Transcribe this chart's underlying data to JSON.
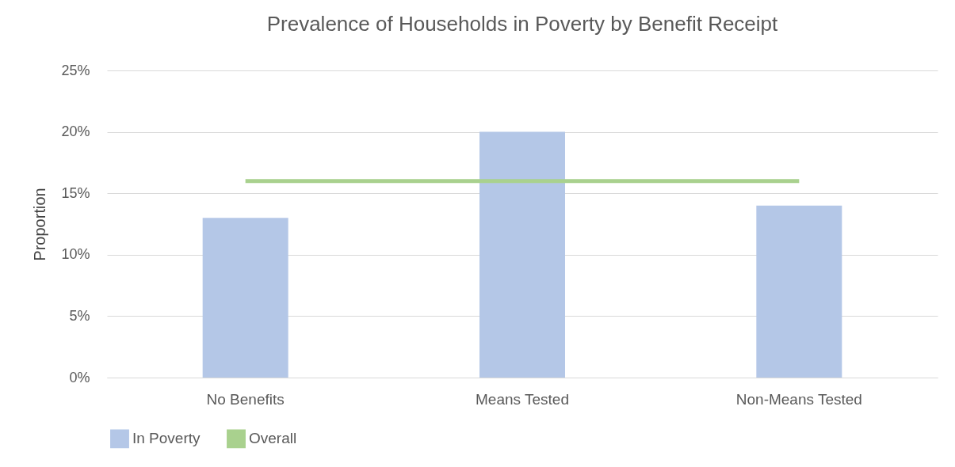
{
  "chart_data": {
    "type": "bar",
    "title": "Prevalence of Households in Poverty by Benefit Receipt",
    "ylabel": "Proportion",
    "categories": [
      "No Benefits",
      "Means Tested",
      "Non-Means Tested"
    ],
    "series": [
      {
        "name": "In Poverty",
        "color": "#b4c7e7",
        "values": [
          13,
          20,
          14
        ]
      },
      {
        "name": "Overall",
        "type": "line",
        "color": "#a9d18e",
        "values": [
          16,
          16,
          16
        ]
      }
    ],
    "ylim": [
      0,
      25
    ],
    "yticks": [
      {
        "value": 0,
        "label": "0%"
      },
      {
        "value": 5,
        "label": "5%"
      },
      {
        "value": 10,
        "label": "10%"
      },
      {
        "value": 15,
        "label": "15%"
      },
      {
        "value": 20,
        "label": "20%"
      },
      {
        "value": 25,
        "label": "25%"
      }
    ],
    "grid": "y",
    "legend": "bottom"
  }
}
